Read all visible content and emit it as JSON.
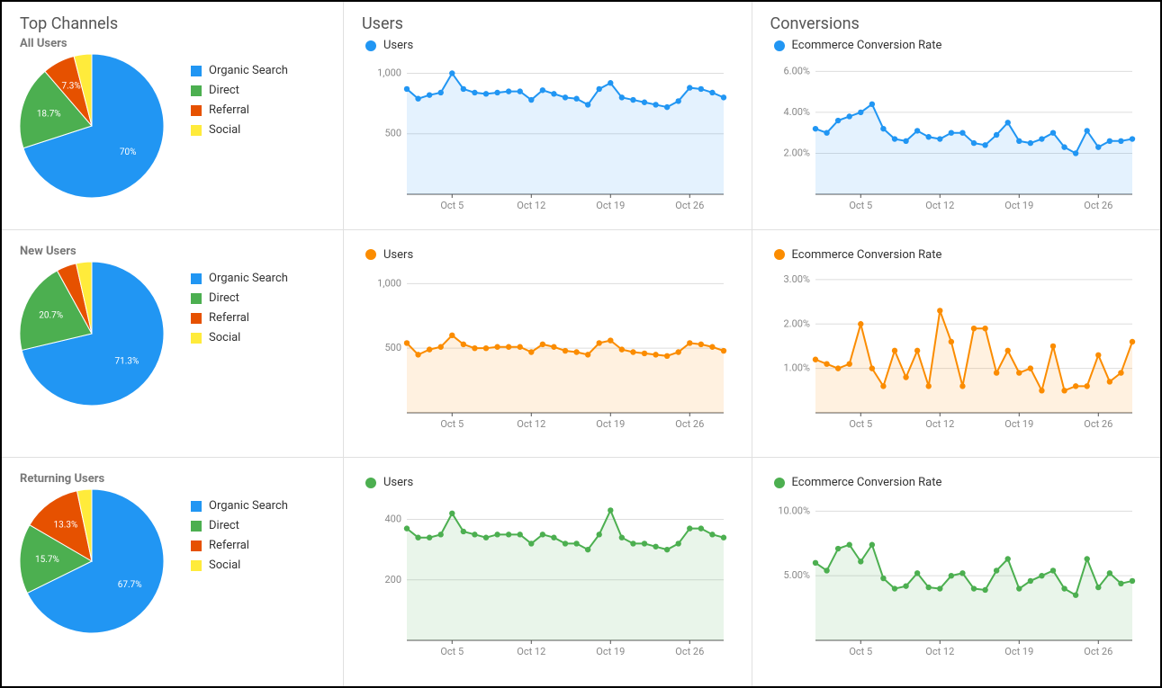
{
  "headers": {
    "channels": "Top Channels",
    "users": "Users",
    "conversions": "Conversions"
  },
  "palette": {
    "organic": "#2196f3",
    "direct": "#4caf50",
    "referral": "#e65100",
    "social": "#ffeb3b",
    "axis": "#888888",
    "grid": "#dddddd"
  },
  "legend_labels": {
    "organic": "Organic Search",
    "direct": "Direct",
    "referral": "Referral",
    "social": "Social"
  },
  "series_labels": {
    "users": "Users",
    "conv": "Ecommerce Conversion Rate"
  },
  "x_axis": {
    "ticks": [
      "Oct 5",
      "Oct 12",
      "Oct 19",
      "Oct 26"
    ],
    "n_points": 29
  },
  "segments": [
    {
      "name": "All Users",
      "color": "#2196f3",
      "pie": {
        "slices": [
          {
            "key": "organic",
            "pct": 70.0,
            "label": "70%"
          },
          {
            "key": "direct",
            "pct": 18.7,
            "label": "18.7%"
          },
          {
            "key": "referral",
            "pct": 7.3,
            "label": "7.3%"
          },
          {
            "key": "social",
            "pct": 4.0,
            "label": null
          }
        ],
        "label_radius": 0.62,
        "radius": 80
      },
      "users_chart": {
        "ylim": [
          0,
          1100
        ],
        "yticks": [
          {
            "v": 500,
            "label": "500"
          },
          {
            "v": 1000,
            "label": "1,000"
          }
        ],
        "values": [
          870,
          790,
          820,
          840,
          1000,
          870,
          840,
          830,
          840,
          850,
          850,
          780,
          860,
          830,
          800,
          790,
          740,
          870,
          920,
          800,
          780,
          760,
          740,
          720,
          770,
          880,
          870,
          840,
          800
        ]
      },
      "conv_chart": {
        "ylim": [
          0,
          6.5
        ],
        "yticks": [
          {
            "v": 2,
            "label": "2.00%"
          },
          {
            "v": 4,
            "label": "4.00%"
          },
          {
            "v": 6,
            "label": "6.00%"
          }
        ],
        "values": [
          3.2,
          3.0,
          3.6,
          3.8,
          4.0,
          4.4,
          3.2,
          2.7,
          2.6,
          3.1,
          2.8,
          2.7,
          3.0,
          3.0,
          2.5,
          2.4,
          2.9,
          3.5,
          2.6,
          2.5,
          2.7,
          3.0,
          2.3,
          2.0,
          3.1,
          2.3,
          2.6,
          2.6,
          2.7
        ]
      }
    },
    {
      "name": "New Users",
      "color": "#fb8c00",
      "pie": {
        "slices": [
          {
            "key": "organic",
            "pct": 71.3,
            "label": "71.3%"
          },
          {
            "key": "direct",
            "pct": 20.7,
            "label": "20.7%"
          },
          {
            "key": "referral",
            "pct": 4.5,
            "label": null
          },
          {
            "key": "social",
            "pct": 3.5,
            "label": null
          }
        ],
        "label_radius": 0.62,
        "radius": 80
      },
      "users_chart": {
        "ylim": [
          0,
          1100
        ],
        "yticks": [
          {
            "v": 500,
            "label": "500"
          },
          {
            "v": 1000,
            "label": "1,000"
          }
        ],
        "values": [
          540,
          450,
          490,
          510,
          600,
          530,
          500,
          500,
          510,
          510,
          510,
          470,
          530,
          510,
          480,
          470,
          450,
          540,
          560,
          490,
          470,
          460,
          450,
          440,
          470,
          540,
          530,
          510,
          480
        ]
      },
      "conv_chart": {
        "ylim": [
          0,
          3.2
        ],
        "yticks": [
          {
            "v": 1,
            "label": "1.00%"
          },
          {
            "v": 2,
            "label": "2.00%"
          },
          {
            "v": 3,
            "label": "3.00%"
          }
        ],
        "values": [
          1.2,
          1.1,
          1.0,
          1.1,
          2.0,
          1.0,
          0.6,
          1.4,
          0.8,
          1.4,
          0.6,
          2.3,
          1.6,
          0.6,
          1.9,
          1.9,
          0.9,
          1.4,
          0.9,
          1.0,
          0.5,
          1.5,
          0.5,
          0.6,
          0.6,
          1.3,
          0.7,
          0.9,
          1.6
        ]
      }
    },
    {
      "name": "Returning Users",
      "color": "#4caf50",
      "pie": {
        "slices": [
          {
            "key": "organic",
            "pct": 67.7,
            "label": "67.7%"
          },
          {
            "key": "direct",
            "pct": 15.7,
            "label": "15.7%"
          },
          {
            "key": "referral",
            "pct": 13.3,
            "label": "13.3%"
          },
          {
            "key": "social",
            "pct": 3.3,
            "label": null
          }
        ],
        "label_radius": 0.62,
        "radius": 80
      },
      "users_chart": {
        "ylim": [
          0,
          470
        ],
        "yticks": [
          {
            "v": 200,
            "label": "200"
          },
          {
            "v": 400,
            "label": "400"
          }
        ],
        "values": [
          370,
          340,
          340,
          350,
          420,
          360,
          350,
          340,
          350,
          350,
          350,
          320,
          350,
          340,
          320,
          320,
          300,
          350,
          430,
          340,
          320,
          320,
          310,
          300,
          320,
          370,
          370,
          350,
          340
        ]
      },
      "conv_chart": {
        "ylim": [
          0,
          11
        ],
        "yticks": [
          {
            "v": 5,
            "label": "5.00%"
          },
          {
            "v": 10,
            "label": "10.00%"
          }
        ],
        "values": [
          6.0,
          5.4,
          7.1,
          7.4,
          6.1,
          7.4,
          4.8,
          4.0,
          4.2,
          5.2,
          4.1,
          4.0,
          5.0,
          5.2,
          4.0,
          3.9,
          5.4,
          6.3,
          4.0,
          4.6,
          5.0,
          5.4,
          4.0,
          3.5,
          6.3,
          4.1,
          5.2,
          4.4,
          4.6
        ]
      }
    }
  ]
}
